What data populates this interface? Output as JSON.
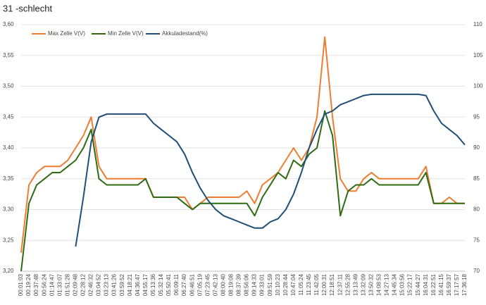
{
  "chart_data": {
    "type": "line",
    "title": "31 -schlecht",
    "legend": "top-left",
    "grid": true,
    "categories": [
      "00:01:03",
      "00:19:24",
      "00:37:48",
      "00:56:24",
      "01:14:47",
      "01:33:07",
      "01:51:28",
      "02:09:48",
      "02:28:12",
      "02:46:32",
      "03:04:52",
      "03:23:13",
      "03:41:26",
      "03:59:52",
      "04:18:21",
      "04:36:47",
      "04:55:17",
      "05:13:36",
      "05:32:14",
      "05:50:41",
      "06:09:11",
      "06:27:40",
      "06:46:51",
      "07:05:19",
      "07:23:45",
      "07:42:13",
      "08:00:40",
      "08:19:08",
      "08:37:39",
      "08:56:06",
      "09:14:33",
      "09:33:01",
      "09:51:59",
      "10:10:23",
      "10:28:44",
      "10:47:04",
      "11:05:24",
      "11:23:45",
      "11:42:05",
      "12:00:31",
      "12:18:51",
      "12:37:11",
      "12:55:28",
      "13:13:49",
      "13:32:09",
      "13:50:32",
      "14:08:53",
      "14:27:13",
      "14:45:34",
      "15:03:56",
      "15:22:17",
      "15:44:27",
      "16:04:31",
      "16:22:51",
      "16:41:15",
      "16:59:37",
      "17:17:57",
      "17:36:18"
    ],
    "ylim": [
      3.2,
      3.6
    ],
    "yticks": [
      {
        "value": 3.2,
        "label": "3,20"
      },
      {
        "value": 3.25,
        "label": "3,25"
      },
      {
        "value": 3.3,
        "label": "3,30"
      },
      {
        "value": 3.35,
        "label": "3,35"
      },
      {
        "value": 3.4,
        "label": "3,40"
      },
      {
        "value": 3.45,
        "label": "3,45"
      },
      {
        "value": 3.5,
        "label": "3,50"
      },
      {
        "value": 3.55,
        "label": "3,55"
      },
      {
        "value": 3.6,
        "label": "3,60"
      }
    ],
    "y2lim": [
      70,
      110
    ],
    "y2ticks": [
      70,
      75,
      80,
      85,
      90,
      95,
      100,
      105,
      110
    ],
    "series": [
      {
        "name": "Max Zelle V(V)",
        "color": "#ed7d31",
        "values": [
          3.23,
          3.34,
          3.36,
          3.37,
          3.37,
          3.37,
          3.38,
          3.4,
          3.42,
          3.45,
          3.37,
          3.35,
          3.35,
          3.35,
          3.35,
          3.35,
          3.35,
          3.32,
          3.32,
          3.32,
          3.32,
          3.32,
          3.3,
          3.31,
          3.32,
          3.32,
          3.32,
          3.32,
          3.32,
          3.33,
          3.31,
          3.34,
          3.35,
          3.36,
          3.38,
          3.4,
          3.38,
          3.4,
          3.45,
          3.58,
          3.45,
          3.35,
          3.33,
          3.33,
          3.35,
          3.36,
          3.35,
          3.35,
          3.35,
          3.35,
          3.35,
          3.35,
          3.37,
          3.31,
          3.31,
          3.32,
          3.31,
          3.31
        ]
      },
      {
        "name": "Min Zelle V(V)",
        "color": "#2e6b12",
        "values": [
          3.2,
          3.31,
          3.34,
          3.35,
          3.36,
          3.36,
          3.37,
          3.38,
          3.4,
          3.43,
          3.35,
          3.34,
          3.34,
          3.34,
          3.34,
          3.34,
          3.35,
          3.32,
          3.32,
          3.32,
          3.32,
          3.31,
          3.3,
          3.31,
          3.31,
          3.31,
          3.31,
          3.31,
          3.31,
          3.31,
          3.29,
          3.32,
          3.34,
          3.36,
          3.35,
          3.38,
          3.37,
          3.39,
          3.4,
          3.46,
          3.42,
          3.29,
          3.33,
          3.34,
          3.34,
          3.35,
          3.34,
          3.34,
          3.34,
          3.34,
          3.34,
          3.34,
          3.36,
          3.31,
          3.31,
          3.31,
          3.31,
          3.31
        ]
      },
      {
        "name": "Akkuladestand(%)",
        "color": "#1f4e79",
        "axis": "y2",
        "values": [
          null,
          null,
          null,
          null,
          null,
          null,
          null,
          74,
          82,
          91,
          95,
          95.5,
          95.5,
          95.5,
          95.5,
          95.5,
          95.5,
          94,
          93,
          92,
          91,
          89,
          86,
          83.5,
          81.5,
          80,
          79,
          78.5,
          78,
          77.5,
          77,
          77,
          78,
          78.5,
          80,
          82.5,
          86,
          90,
          93,
          95.5,
          96,
          97,
          97.5,
          98,
          98.5,
          98.7,
          98.7,
          98.7,
          98.7,
          98.7,
          98.7,
          98.7,
          98.5,
          96,
          94,
          93,
          92,
          90.5
        ]
      }
    ]
  }
}
